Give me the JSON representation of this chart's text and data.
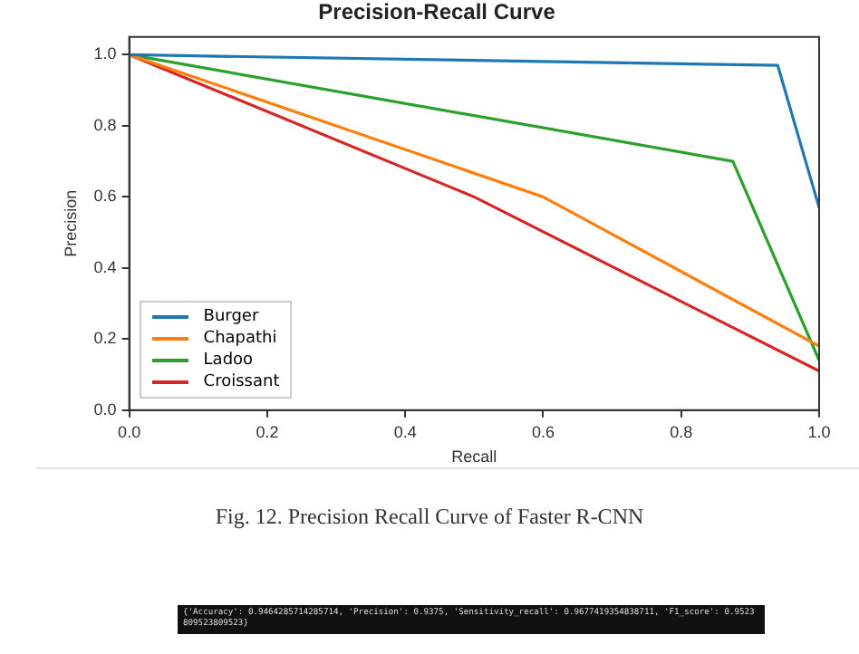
{
  "chart_data": {
    "type": "line",
    "title": "Precision-Recall Curve",
    "xlabel": "Recall",
    "ylabel": "Precision",
    "series": [
      {
        "name": "Burger",
        "color": "#1f77b4",
        "x": [
          0,
          0.94,
          1
        ],
        "values": [
          1,
          0.97,
          0.57
        ]
      },
      {
        "name": "Chapathi",
        "color": "#ff7f0e",
        "x": [
          0,
          0.6,
          1
        ],
        "values": [
          1,
          0.6,
          0.18
        ]
      },
      {
        "name": "Ladoo",
        "color": "#2ca02c",
        "x": [
          0,
          0.875,
          1
        ],
        "values": [
          1,
          0.7,
          0.14
        ]
      },
      {
        "name": "Croissant",
        "color": "#d62728",
        "x": [
          0,
          0.5,
          1
        ],
        "values": [
          1,
          0.6,
          0.11
        ]
      }
    ],
    "xlim": [
      0,
      1
    ],
    "ylim": [
      0,
      1.05
    ],
    "xticks": [
      {
        "value": 0,
        "label": "0.0"
      },
      0.2,
      0.4,
      0.6,
      0.8,
      {
        "value": 1,
        "label": "1.0"
      }
    ],
    "yticks": [
      {
        "value": 0,
        "label": "0.0"
      },
      0.2,
      0.4,
      0.6,
      0.8,
      {
        "value": 1,
        "label": "1.0"
      }
    ],
    "legend": "bottom left",
    "grid": false,
    "marker": "none",
    "line_style": "solid",
    "annotations": [
      "Fig. 12.  Precision Recall Curve of Faster R-CNN",
      "{'Accuracy': 0.9464285714285714, 'Precision': 0.9375, 'Sensitivity_recall': 0.9677419354838711, 'F1_score': 0.9523809523809523}"
    ]
  }
}
